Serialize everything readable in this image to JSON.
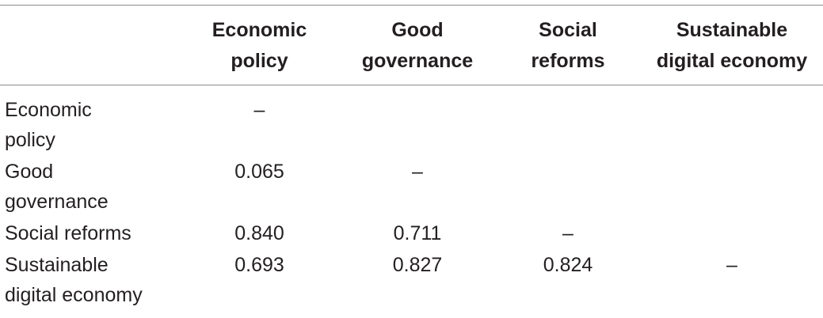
{
  "table": {
    "headers": [
      "",
      "Economic policy",
      "Good governance",
      "Social reforms",
      "Sustainable digital economy"
    ],
    "header_lines": [
      [
        "",
        ""
      ],
      [
        "Economic",
        "policy"
      ],
      [
        "Good",
        "governance"
      ],
      [
        "Social",
        "reforms"
      ],
      [
        "Sustainable",
        "digital economy"
      ]
    ],
    "rows": [
      {
        "label_lines": [
          "Economic",
          "policy"
        ],
        "label": "Economic policy",
        "cells": [
          "–",
          "",
          "",
          ""
        ]
      },
      {
        "label_lines": [
          "Good",
          "governance"
        ],
        "label": "Good governance",
        "cells": [
          "0.065",
          "–",
          "",
          ""
        ]
      },
      {
        "label_lines": [
          "Social reforms",
          ""
        ],
        "label": "Social reforms",
        "cells": [
          "0.840",
          "0.711",
          "–",
          ""
        ]
      },
      {
        "label_lines": [
          "Sustainable",
          "digital economy"
        ],
        "label": "Sustainable digital economy",
        "cells": [
          "0.693",
          "0.827",
          "0.824",
          "–"
        ]
      }
    ]
  }
}
